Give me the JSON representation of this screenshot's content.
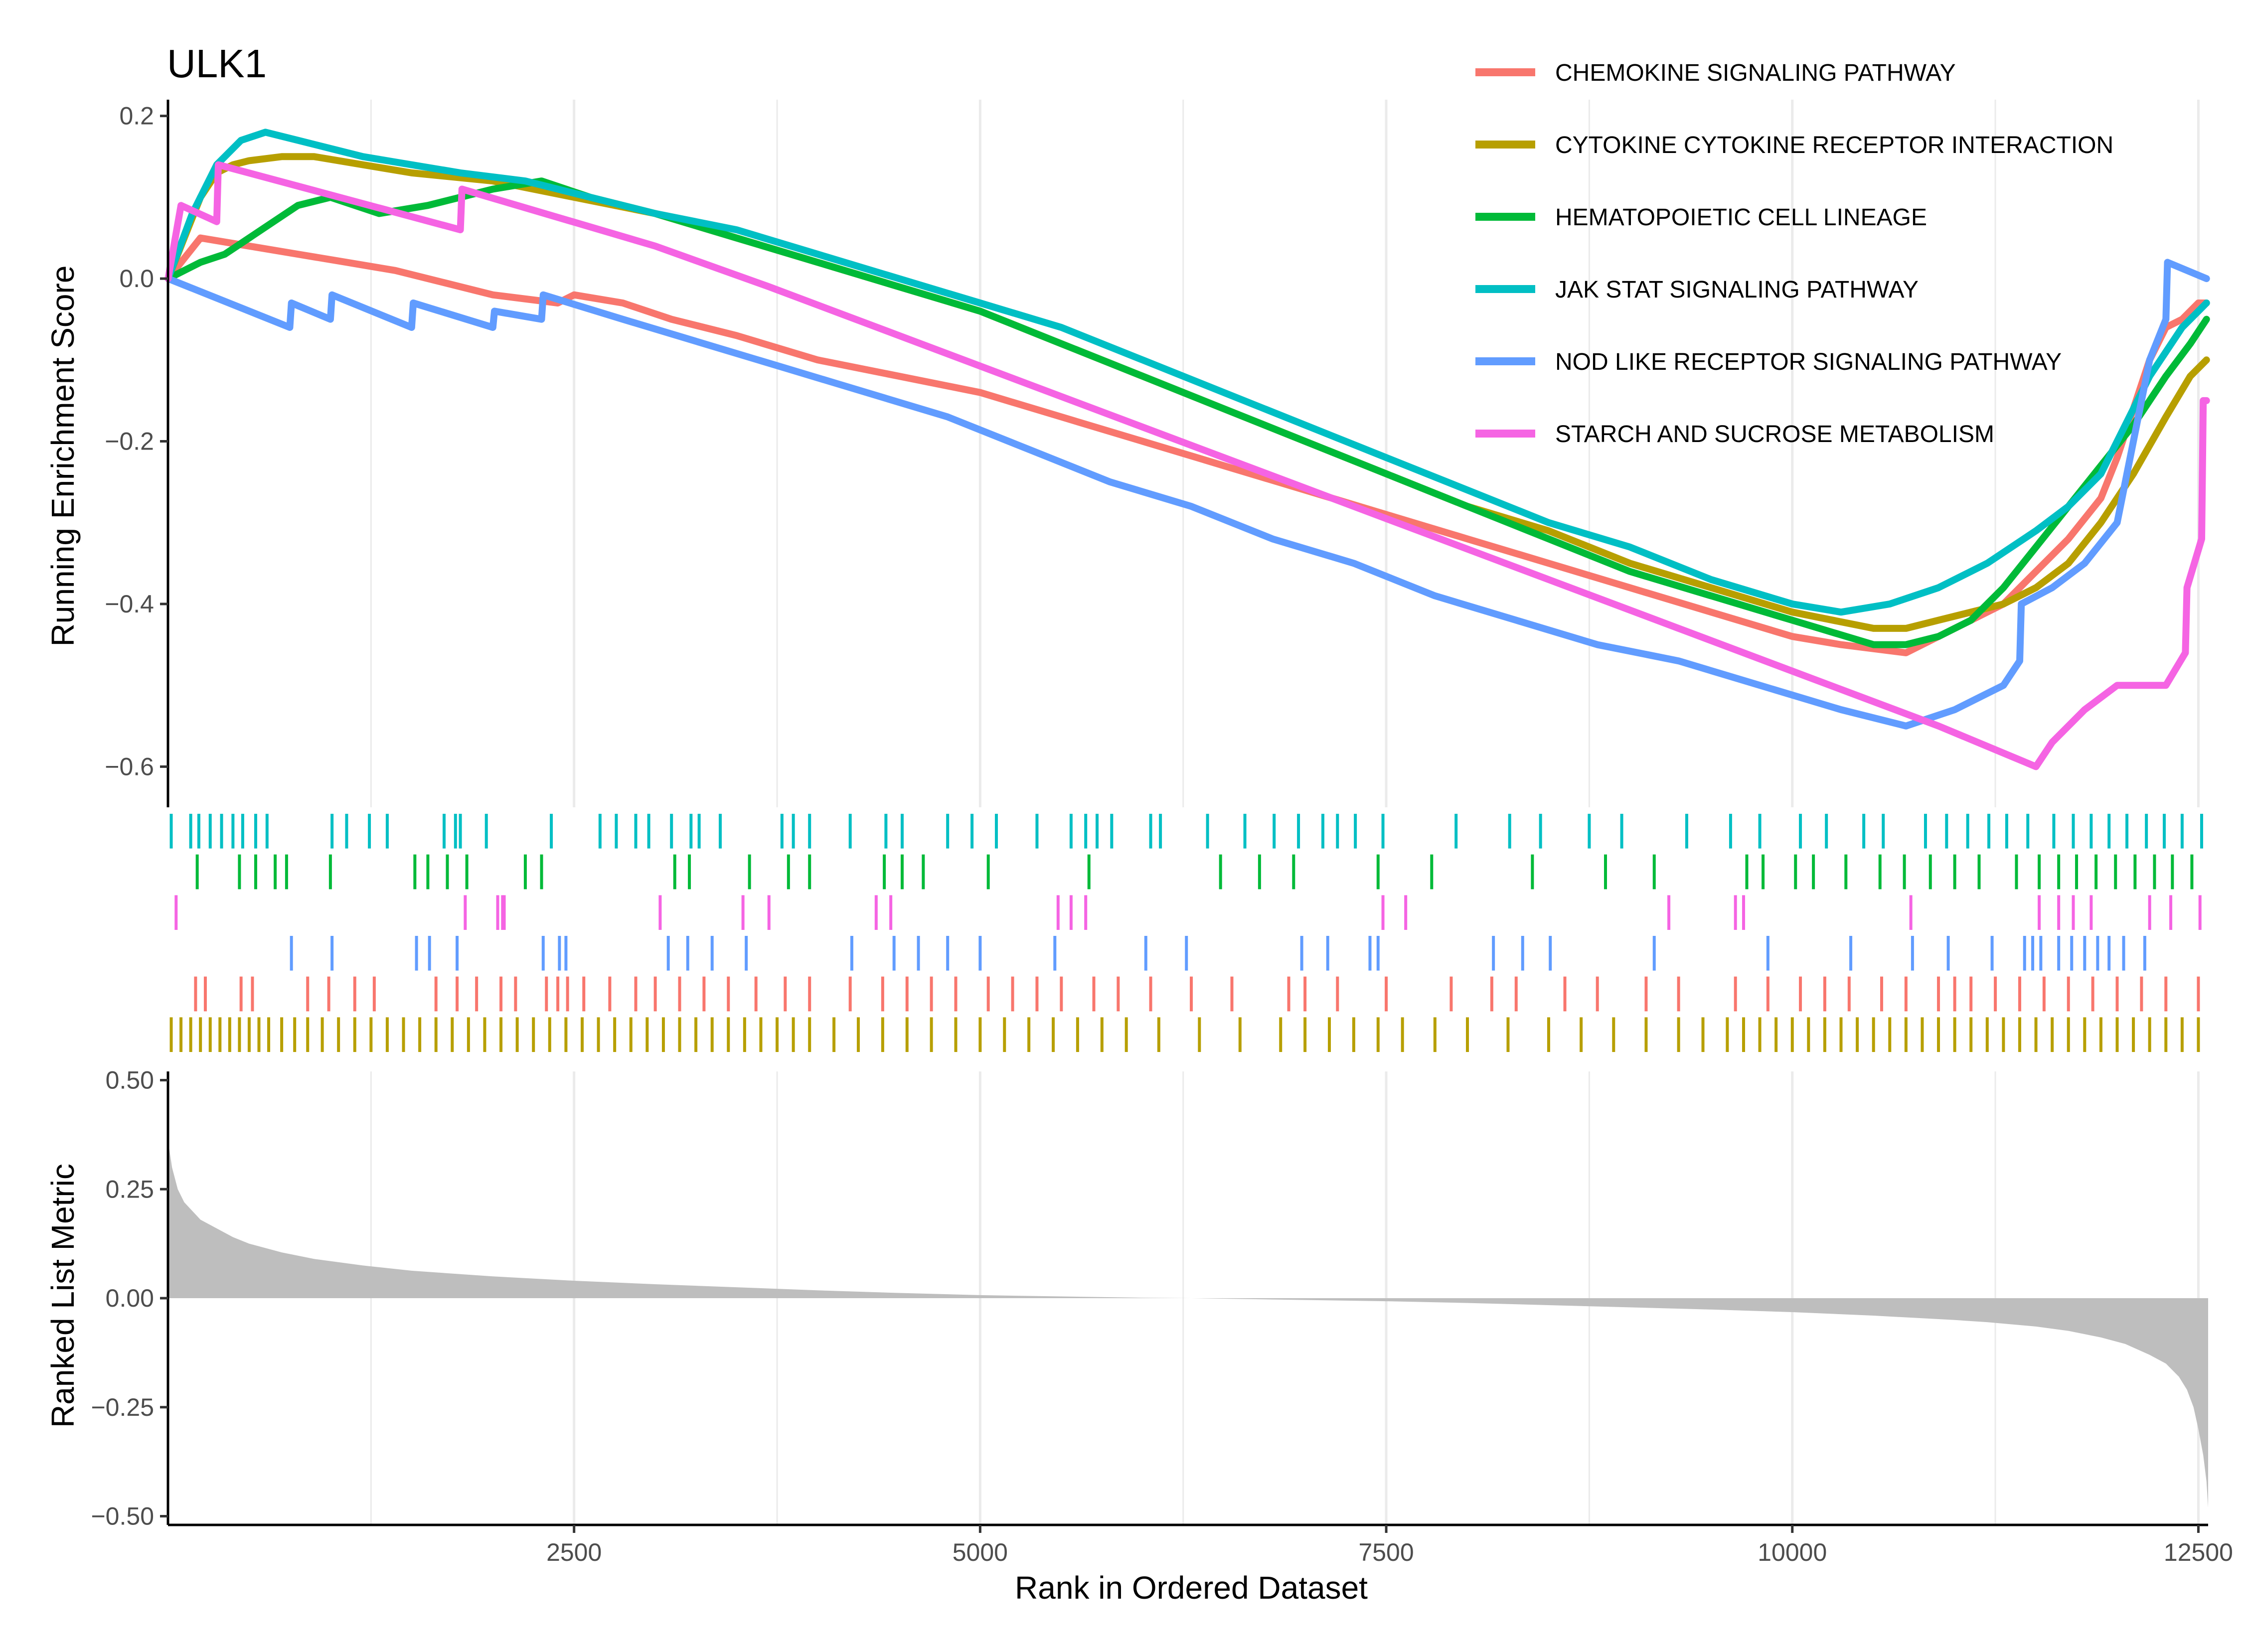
{
  "chart_data": {
    "type": "line",
    "title": "ULK1",
    "xlabel": "Rank in Ordered Dataset",
    "xlim": [
      0,
      12560
    ],
    "x_ticks": [
      2500,
      5000,
      7500,
      10000,
      12500
    ],
    "grid": true,
    "legend_position": "top-right",
    "panels": {
      "running_score": {
        "ylabel": "Running Enrichment Score",
        "ylim": [
          -0.65,
          0.22
        ],
        "y_ticks": [
          0.2,
          0.0,
          -0.2,
          -0.4,
          -0.6
        ],
        "y_tick_labels": [
          "0.2",
          "0.0",
          "−0.2",
          "−0.4",
          "−0.6"
        ]
      },
      "ranked_metric": {
        "ylabel": "Ranked List Metric",
        "ylim": [
          -0.52,
          0.52
        ],
        "y_ticks": [
          0.5,
          0.25,
          0.0,
          -0.25,
          -0.5
        ],
        "y_tick_labels": [
          "0.50",
          "0.25",
          "0.00",
          "−0.25",
          "−0.50"
        ],
        "color": "#BEBEBE",
        "x": [
          1,
          25,
          60,
          100,
          150,
          200,
          300,
          400,
          500,
          700,
          900,
          1200,
          1500,
          2000,
          2500,
          3000,
          3500,
          4000,
          4500,
          5000,
          5500,
          6000,
          6300,
          6800,
          7500,
          8000,
          8500,
          9000,
          9500,
          10000,
          10500,
          11000,
          11200,
          11500,
          11700,
          11900,
          12050,
          12200,
          12300,
          12380,
          12430,
          12470,
          12500,
          12530,
          12550,
          12560
        ],
        "values": [
          0.36,
          0.3,
          0.25,
          0.22,
          0.2,
          0.18,
          0.16,
          0.14,
          0.125,
          0.105,
          0.09,
          0.075,
          0.063,
          0.05,
          0.04,
          0.032,
          0.025,
          0.018,
          0.012,
          0.007,
          0.004,
          0.001,
          0.0,
          -0.003,
          -0.007,
          -0.011,
          -0.016,
          -0.021,
          -0.026,
          -0.032,
          -0.04,
          -0.05,
          -0.055,
          -0.065,
          -0.075,
          -0.09,
          -0.105,
          -0.13,
          -0.15,
          -0.18,
          -0.21,
          -0.25,
          -0.3,
          -0.36,
          -0.42,
          -0.48
        ]
      }
    },
    "series": [
      {
        "name": "CHEMOKINE SIGNALING PATHWAY",
        "color": "#F8766D",
        "x": [
          1,
          200,
          500,
          800,
          1100,
          1400,
          1700,
          2000,
          2400,
          2500,
          2800,
          3100,
          3500,
          4000,
          4500,
          5000,
          5500,
          6000,
          6500,
          7000,
          7500,
          8000,
          8500,
          9000,
          9500,
          10000,
          10300,
          10700,
          10900,
          11100,
          11300,
          11500,
          11700,
          11900,
          12000,
          12100,
          12200,
          12300,
          12400,
          12500,
          12550
        ],
        "values": [
          0.0,
          0.05,
          0.04,
          0.03,
          0.02,
          0.01,
          -0.005,
          -0.02,
          -0.03,
          -0.02,
          -0.03,
          -0.05,
          -0.07,
          -0.1,
          -0.12,
          -0.14,
          -0.17,
          -0.2,
          -0.23,
          -0.26,
          -0.29,
          -0.32,
          -0.35,
          -0.38,
          -0.41,
          -0.44,
          -0.45,
          -0.46,
          -0.44,
          -0.42,
          -0.4,
          -0.36,
          -0.32,
          -0.27,
          -0.22,
          -0.16,
          -0.1,
          -0.06,
          -0.05,
          -0.03,
          -0.03
        ]
      },
      {
        "name": "CYTOKINE CYTOKINE RECEPTOR INTERACTION",
        "color": "#B79F00",
        "x": [
          1,
          100,
          200,
          300,
          400,
          500,
          700,
          900,
          1200,
          1500,
          2000,
          2500,
          3000,
          3500,
          4000,
          4500,
          5000,
          5500,
          6000,
          6500,
          7000,
          7500,
          8000,
          8500,
          9000,
          9500,
          10000,
          10500,
          10700,
          10900,
          11100,
          11300,
          11500,
          11700,
          11900,
          12100,
          12300,
          12450,
          12550
        ],
        "values": [
          0.0,
          0.05,
          0.1,
          0.13,
          0.14,
          0.145,
          0.15,
          0.15,
          0.14,
          0.13,
          0.12,
          0.1,
          0.08,
          0.05,
          0.02,
          -0.01,
          -0.04,
          -0.08,
          -0.12,
          -0.16,
          -0.2,
          -0.24,
          -0.28,
          -0.31,
          -0.35,
          -0.38,
          -0.41,
          -0.43,
          -0.43,
          -0.42,
          -0.41,
          -0.4,
          -0.38,
          -0.35,
          -0.3,
          -0.24,
          -0.17,
          -0.12,
          -0.1
        ]
      },
      {
        "name": "HEMATOPOIETIC CELL LINEAGE",
        "color": "#00BA38",
        "x": [
          1,
          200,
          350,
          500,
          650,
          800,
          1000,
          1300,
          1600,
          2000,
          2300,
          2600,
          3000,
          3500,
          4000,
          4500,
          5000,
          5500,
          6000,
          6500,
          7000,
          7500,
          8000,
          8500,
          9000,
          9500,
          10000,
          10500,
          10700,
          10900,
          11100,
          11300,
          11500,
          11700,
          11900,
          12100,
          12300,
          12450,
          12550
        ],
        "values": [
          0.0,
          0.02,
          0.03,
          0.05,
          0.07,
          0.09,
          0.1,
          0.08,
          0.09,
          0.11,
          0.12,
          0.1,
          0.08,
          0.05,
          0.02,
          -0.01,
          -0.04,
          -0.08,
          -0.12,
          -0.16,
          -0.2,
          -0.24,
          -0.28,
          -0.32,
          -0.36,
          -0.39,
          -0.42,
          -0.45,
          -0.45,
          -0.44,
          -0.42,
          -0.38,
          -0.33,
          -0.28,
          -0.23,
          -0.18,
          -0.12,
          -0.08,
          -0.05
        ]
      },
      {
        "name": "JAK STAT SIGNALING PATHWAY",
        "color": "#00BFC4",
        "x": [
          1,
          150,
          300,
          450,
          600,
          800,
          1000,
          1200,
          1500,
          1800,
          2200,
          2600,
          3000,
          3500,
          4000,
          4500,
          5000,
          5500,
          6000,
          6500,
          7000,
          7500,
          8000,
          8500,
          9000,
          9500,
          10000,
          10300,
          10600,
          10900,
          11200,
          11500,
          11700,
          11900,
          12000,
          12100,
          12200,
          12300,
          12400,
          12500,
          12550
        ],
        "values": [
          0.0,
          0.08,
          0.14,
          0.17,
          0.18,
          0.17,
          0.16,
          0.15,
          0.14,
          0.13,
          0.12,
          0.1,
          0.08,
          0.06,
          0.03,
          0.0,
          -0.03,
          -0.06,
          -0.1,
          -0.14,
          -0.18,
          -0.22,
          -0.26,
          -0.3,
          -0.33,
          -0.37,
          -0.4,
          -0.41,
          -0.4,
          -0.38,
          -0.35,
          -0.31,
          -0.28,
          -0.24,
          -0.2,
          -0.16,
          -0.12,
          -0.09,
          -0.06,
          -0.04,
          -0.03
        ]
      },
      {
        "name": "NOD LIKE RECEPTOR SIGNALING PATHWAY",
        "color": "#619CFF",
        "x": [
          1,
          750,
          760,
          1000,
          1010,
          1500,
          1510,
          2000,
          2010,
          2300,
          2310,
          2800,
          3300,
          3800,
          4300,
          4800,
          5300,
          5800,
          6300,
          6800,
          7300,
          7800,
          8300,
          8800,
          9300,
          9800,
          10300,
          10700,
          11000,
          11300,
          11400,
          11410,
          11600,
          11800,
          12000,
          12100,
          12200,
          12300,
          12310,
          12550
        ],
        "values": [
          0.0,
          -0.06,
          -0.03,
          -0.05,
          -0.02,
          -0.06,
          -0.03,
          -0.06,
          -0.04,
          -0.05,
          -0.02,
          -0.05,
          -0.08,
          -0.11,
          -0.14,
          -0.17,
          -0.21,
          -0.25,
          -0.28,
          -0.32,
          -0.35,
          -0.39,
          -0.42,
          -0.45,
          -0.47,
          -0.5,
          -0.53,
          -0.55,
          -0.53,
          -0.5,
          -0.47,
          -0.4,
          -0.38,
          -0.35,
          -0.3,
          -0.2,
          -0.1,
          -0.05,
          0.02,
          0.0
        ]
      },
      {
        "name": "STARCH AND SUCROSE METABOLISM",
        "color": "#F564E3",
        "x": [
          1,
          80,
          300,
          310,
          1800,
          1810,
          3000,
          3700,
          4500,
          5300,
          6100,
          6900,
          7700,
          8500,
          9300,
          10100,
          10900,
          11500,
          11600,
          11800,
          12000,
          12300,
          12420,
          12430,
          12520,
          12530,
          12550
        ],
        "values": [
          0.0,
          0.09,
          0.07,
          0.14,
          0.06,
          0.11,
          0.04,
          -0.01,
          -0.07,
          -0.13,
          -0.19,
          -0.25,
          -0.31,
          -0.37,
          -0.43,
          -0.49,
          -0.55,
          -0.6,
          -0.57,
          -0.53,
          -0.5,
          -0.5,
          -0.46,
          -0.38,
          -0.32,
          -0.15,
          -0.15
        ]
      }
    ],
    "hits": {
      "order_top_to_bottom": [
        "JAK STAT SIGNALING PATHWAY",
        "HEMATOPOIETIC CELL LINEAGE",
        "STARCH AND SUCROSE METABOLISM",
        "NOD LIKE RECEPTOR SIGNALING PATHWAY",
        "CHEMOKINE SIGNALING PATHWAY",
        "CYTOKINE CYTOKINE RECEPTOR INTERACTION"
      ],
      "JAK STAT SIGNALING PATHWAY": [
        20,
        140,
        190,
        260,
        330,
        400,
        460,
        540,
        610,
        1010,
        1100,
        1240,
        1350,
        1700,
        1770,
        1800,
        1960,
        2360,
        2660,
        2760,
        2880,
        2960,
        3100,
        3220,
        3270,
        3400,
        3780,
        3850,
        3950,
        4200,
        4420,
        4520,
        4800,
        4950,
        5100,
        5350,
        5560,
        5650,
        5720,
        5810,
        6050,
        6110,
        6400,
        6630,
        6810,
        6960,
        7110,
        7200,
        7310,
        7480,
        7930,
        8260,
        8450,
        8750,
        8950,
        9350,
        9620,
        9800,
        10050,
        10210,
        10440,
        10560,
        10820,
        10950,
        11080,
        11210,
        11320,
        11450,
        11610,
        11730,
        11840,
        11950,
        12060,
        12180,
        12290,
        12400,
        12520
      ],
      "HEMATOPOIETIC CELL LINEAGE": [
        180,
        440,
        540,
        660,
        730,
        1000,
        1520,
        1600,
        1720,
        1840,
        2200,
        2300,
        3120,
        3210,
        3580,
        3820,
        3950,
        4410,
        4520,
        4650,
        5050,
        5670,
        6480,
        6720,
        6930,
        7450,
        7780,
        8400,
        8850,
        9150,
        9720,
        9820,
        10020,
        10130,
        10330,
        10540,
        10690,
        10850,
        11000,
        11150,
        11380,
        11520,
        11640,
        11750,
        11870,
        11990,
        12110,
        12230,
        12340,
        12460
      ],
      "STARCH AND SUCROSE METABOLISM": [
        50,
        1830,
        2030,
        2060,
        2070,
        3030,
        3540,
        3700,
        4360,
        4450,
        5480,
        5560,
        5650,
        7480,
        7620,
        9240,
        9650,
        9700,
        10730,
        11520,
        11640,
        11730,
        11840,
        12200,
        12330,
        12510
      ],
      "NOD LIKE RECEPTOR SIGNALING PATHWAY": [
        760,
        1010,
        1530,
        1610,
        1780,
        2310,
        2410,
        2450,
        3080,
        3200,
        3350,
        3560,
        4210,
        4470,
        4620,
        4800,
        5000,
        5460,
        6020,
        6270,
        6980,
        7140,
        7400,
        7450,
        8160,
        8340,
        8510,
        9150,
        9850,
        10360,
        10740,
        10960,
        11230,
        11430,
        11480,
        11530,
        11640,
        11720,
        11800,
        11880,
        11950,
        12040,
        12170
      ],
      "CHEMOKINE SIGNALING PATHWAY": [
        170,
        230,
        450,
        520,
        860,
        990,
        1150,
        1270,
        1650,
        1780,
        1900,
        2050,
        2140,
        2330,
        2400,
        2460,
        2560,
        2720,
        2880,
        3000,
        3150,
        3300,
        3450,
        3620,
        3800,
        3950,
        4200,
        4400,
        4550,
        4700,
        4850,
        5050,
        5200,
        5350,
        5500,
        5700,
        5850,
        6050,
        6300,
        6550,
        6900,
        7000,
        7200,
        7500,
        7900,
        8150,
        8300,
        8600,
        8800,
        9100,
        9300,
        9650,
        9850,
        10050,
        10200,
        10350,
        10550,
        10700,
        10900,
        11000,
        11100,
        11250,
        11400,
        11550,
        11700,
        11850,
        12000,
        12150,
        12300,
        12500
      ],
      "CHEMOKINE SIGNALING PATHWAY_end": [],
      "CYTOKINE CYTOKINE RECEPTOR INTERACTION": [
        20,
        80,
        140,
        200,
        260,
        320,
        380,
        440,
        500,
        560,
        620,
        700,
        780,
        860,
        950,
        1050,
        1150,
        1250,
        1350,
        1450,
        1550,
        1650,
        1750,
        1850,
        1950,
        2050,
        2150,
        2250,
        2350,
        2450,
        2550,
        2650,
        2750,
        2850,
        2950,
        3050,
        3150,
        3250,
        3350,
        3450,
        3550,
        3650,
        3750,
        3850,
        3950,
        4100,
        4250,
        4400,
        4550,
        4700,
        4850,
        5000,
        5150,
        5300,
        5450,
        5600,
        5750,
        5900,
        6100,
        6350,
        6600,
        6850,
        7000,
        7150,
        7300,
        7450,
        7600,
        7800,
        8000,
        8250,
        8500,
        8700,
        8900,
        9100,
        9300,
        9450,
        9600,
        9700,
        9800,
        9900,
        10000,
        10100,
        10200,
        10300,
        10400,
        10500,
        10600,
        10700,
        10800,
        10900,
        11000,
        11100,
        11200,
        11300,
        11400,
        11500,
        11600,
        11700,
        11800,
        11900,
        12000,
        12100,
        12200,
        12300,
        12400,
        12500
      ]
    }
  }
}
